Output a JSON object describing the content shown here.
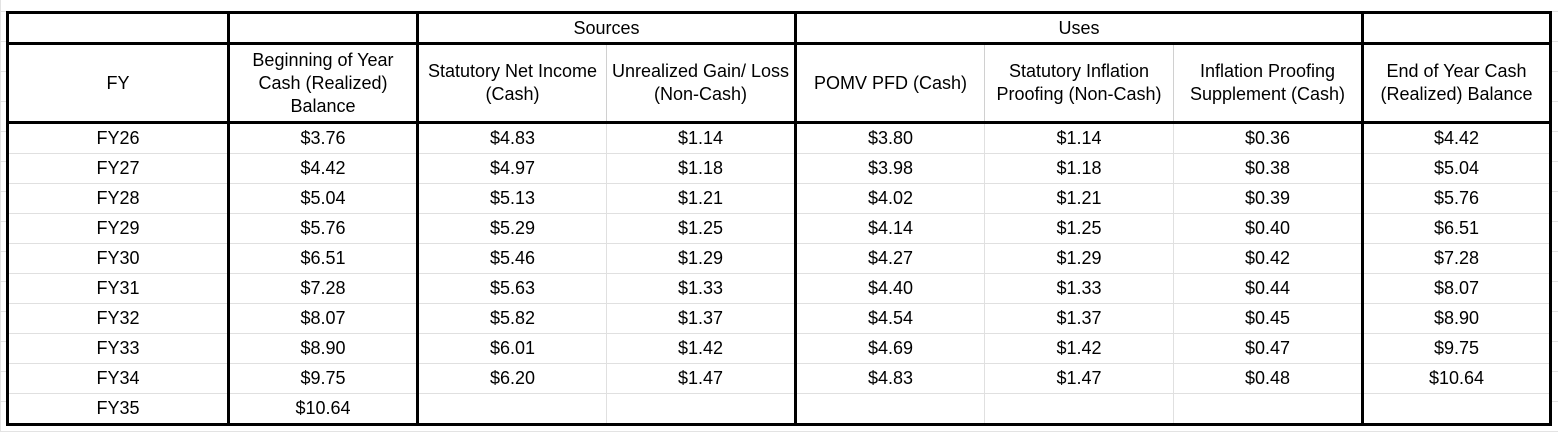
{
  "headers": {
    "groups": {
      "fy_blank": "",
      "boy_blank": "",
      "sources": "Sources",
      "uses": "Uses",
      "eoy_blank": ""
    },
    "columns": {
      "fy": "FY",
      "boy": "Beginning of Year Cash (Realized) Balance",
      "net_income": "Statutory Net Income (Cash)",
      "unrealized": "Unrealized Gain/ Loss (Non-Cash)",
      "pomv": "POMV PFD (Cash)",
      "stat_inflation": "Statutory Inflation Proofing (Non-Cash)",
      "ip_supplement": "Inflation Proofing Supplement (Cash)",
      "eoy": "End of Year Cash (Realized) Balance"
    }
  },
  "rows": [
    {
      "fy": "FY26",
      "boy": "$3.76",
      "net_income": "$4.83",
      "unrealized": "$1.14",
      "pomv": "$3.80",
      "stat_inflation": "$1.14",
      "ip_supplement": "$0.36",
      "eoy": "$4.42"
    },
    {
      "fy": "FY27",
      "boy": "$4.42",
      "net_income": "$4.97",
      "unrealized": "$1.18",
      "pomv": "$3.98",
      "stat_inflation": "$1.18",
      "ip_supplement": "$0.38",
      "eoy": "$5.04"
    },
    {
      "fy": "FY28",
      "boy": "$5.04",
      "net_income": "$5.13",
      "unrealized": "$1.21",
      "pomv": "$4.02",
      "stat_inflation": "$1.21",
      "ip_supplement": "$0.39",
      "eoy": "$5.76"
    },
    {
      "fy": "FY29",
      "boy": "$5.76",
      "net_income": "$5.29",
      "unrealized": "$1.25",
      "pomv": "$4.14",
      "stat_inflation": "$1.25",
      "ip_supplement": "$0.40",
      "eoy": "$6.51"
    },
    {
      "fy": "FY30",
      "boy": "$6.51",
      "net_income": "$5.46",
      "unrealized": "$1.29",
      "pomv": "$4.27",
      "stat_inflation": "$1.29",
      "ip_supplement": "$0.42",
      "eoy": "$7.28"
    },
    {
      "fy": "FY31",
      "boy": "$7.28",
      "net_income": "$5.63",
      "unrealized": "$1.33",
      "pomv": "$4.40",
      "stat_inflation": "$1.33",
      "ip_supplement": "$0.44",
      "eoy": "$8.07"
    },
    {
      "fy": "FY32",
      "boy": "$8.07",
      "net_income": "$5.82",
      "unrealized": "$1.37",
      "pomv": "$4.54",
      "stat_inflation": "$1.37",
      "ip_supplement": "$0.45",
      "eoy": "$8.90"
    },
    {
      "fy": "FY33",
      "boy": "$8.90",
      "net_income": "$6.01",
      "unrealized": "$1.42",
      "pomv": "$4.69",
      "stat_inflation": "$1.42",
      "ip_supplement": "$0.47",
      "eoy": "$9.75"
    },
    {
      "fy": "FY34",
      "boy": "$9.75",
      "net_income": "$6.20",
      "unrealized": "$1.47",
      "pomv": "$4.83",
      "stat_inflation": "$1.47",
      "ip_supplement": "$0.48",
      "eoy": "$10.64"
    },
    {
      "fy": "FY35",
      "boy": "$10.64",
      "net_income": "",
      "unrealized": "",
      "pomv": "",
      "stat_inflation": "",
      "ip_supplement": "",
      "eoy": ""
    }
  ]
}
